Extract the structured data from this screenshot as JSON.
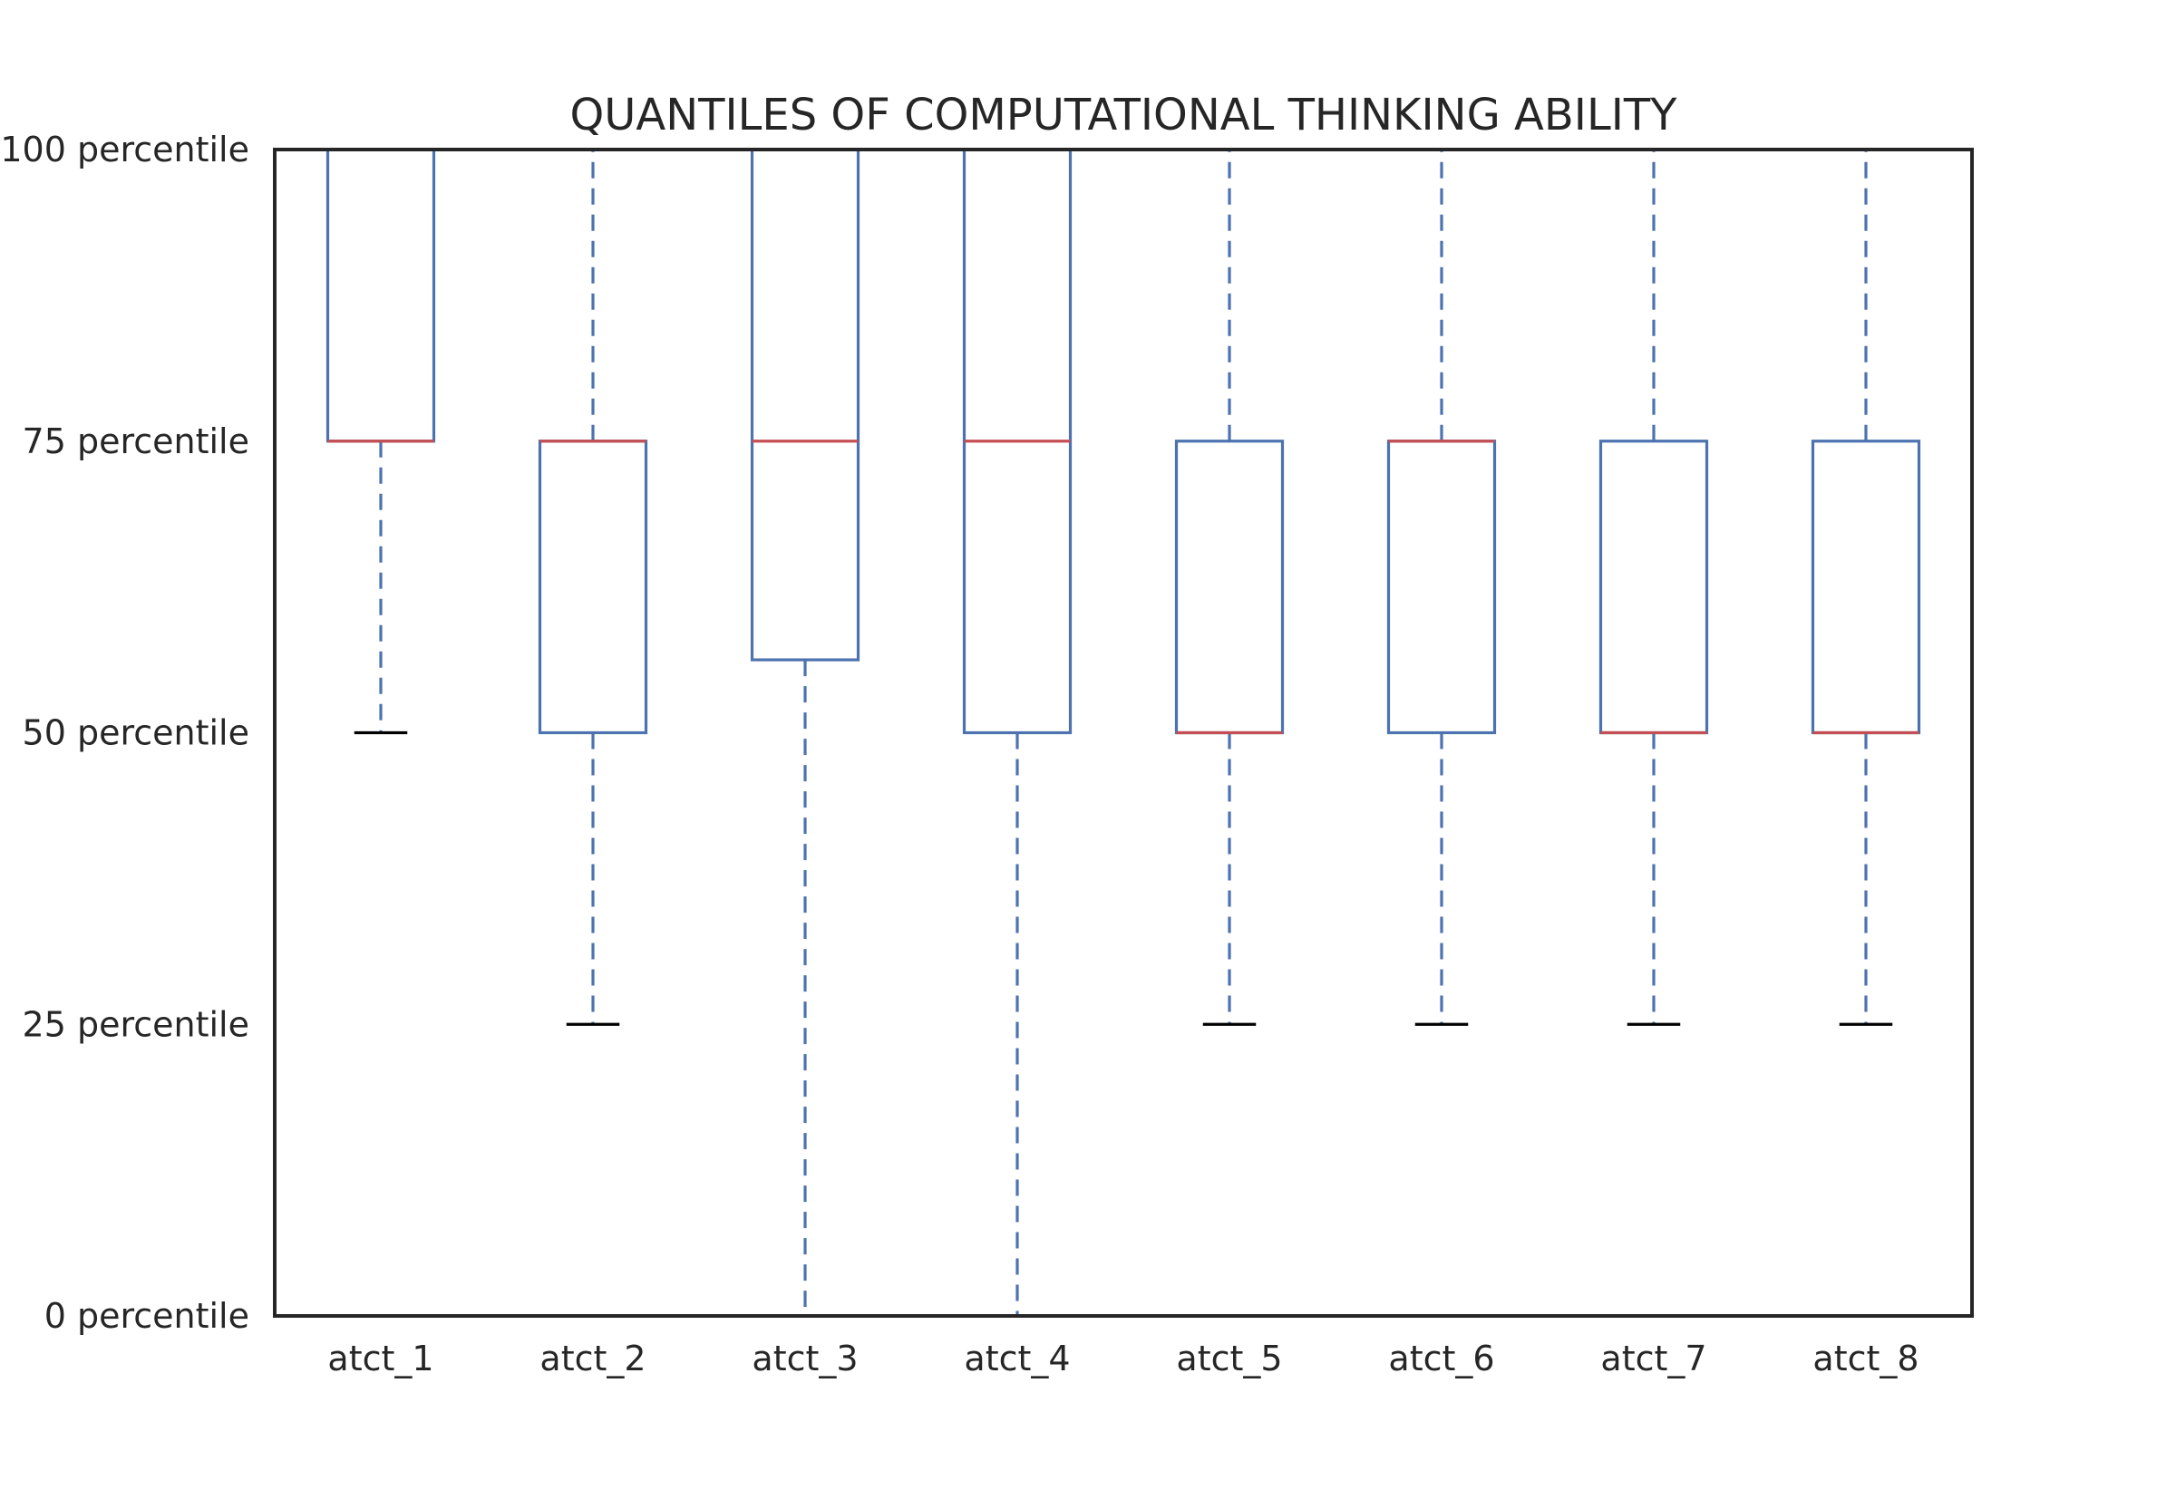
{
  "chart_data": {
    "type": "box",
    "title": "QUANTILES OF COMPUTATIONAL THINKING ABILITY",
    "xlabel": "",
    "ylabel": "",
    "ylim": [
      0,
      100
    ],
    "yticks": [
      0,
      25,
      50,
      75,
      100
    ],
    "ytick_labels": [
      "0 percentile",
      "25 percentile",
      "50 percentile",
      "75 percentile",
      "100 percentile"
    ],
    "grid": false,
    "legend": "none",
    "categories": [
      "atct_1",
      "atct_2",
      "atct_3",
      "atct_4",
      "atct_5",
      "atct_6",
      "atct_7",
      "atct_8"
    ],
    "boxes": [
      {
        "whisker_low": 50,
        "q1": 75,
        "median": 75,
        "q3": 100,
        "whisker_high": 100
      },
      {
        "whisker_low": 25,
        "q1": 50,
        "median": 75,
        "q3": 75,
        "whisker_high": 100
      },
      {
        "whisker_low": 0,
        "q1": 56.25,
        "median": 75,
        "q3": 100,
        "whisker_high": 100
      },
      {
        "whisker_low": 0,
        "q1": 50,
        "median": 75,
        "q3": 100,
        "whisker_high": 100
      },
      {
        "whisker_low": 25,
        "q1": 50,
        "median": 50,
        "q3": 75,
        "whisker_high": 100
      },
      {
        "whisker_low": 25,
        "q1": 50,
        "median": 75,
        "q3": 75,
        "whisker_high": 100
      },
      {
        "whisker_low": 25,
        "q1": 50,
        "median": 50,
        "q3": 75,
        "whisker_high": 100
      },
      {
        "whisker_low": 25,
        "q1": 50,
        "median": 50,
        "q3": 75,
        "whisker_high": 100
      }
    ],
    "colors": {
      "box": "#4c72b0",
      "median": "#c44e52",
      "cap": "#000000",
      "axes": "#262626",
      "text": "#262626"
    }
  }
}
